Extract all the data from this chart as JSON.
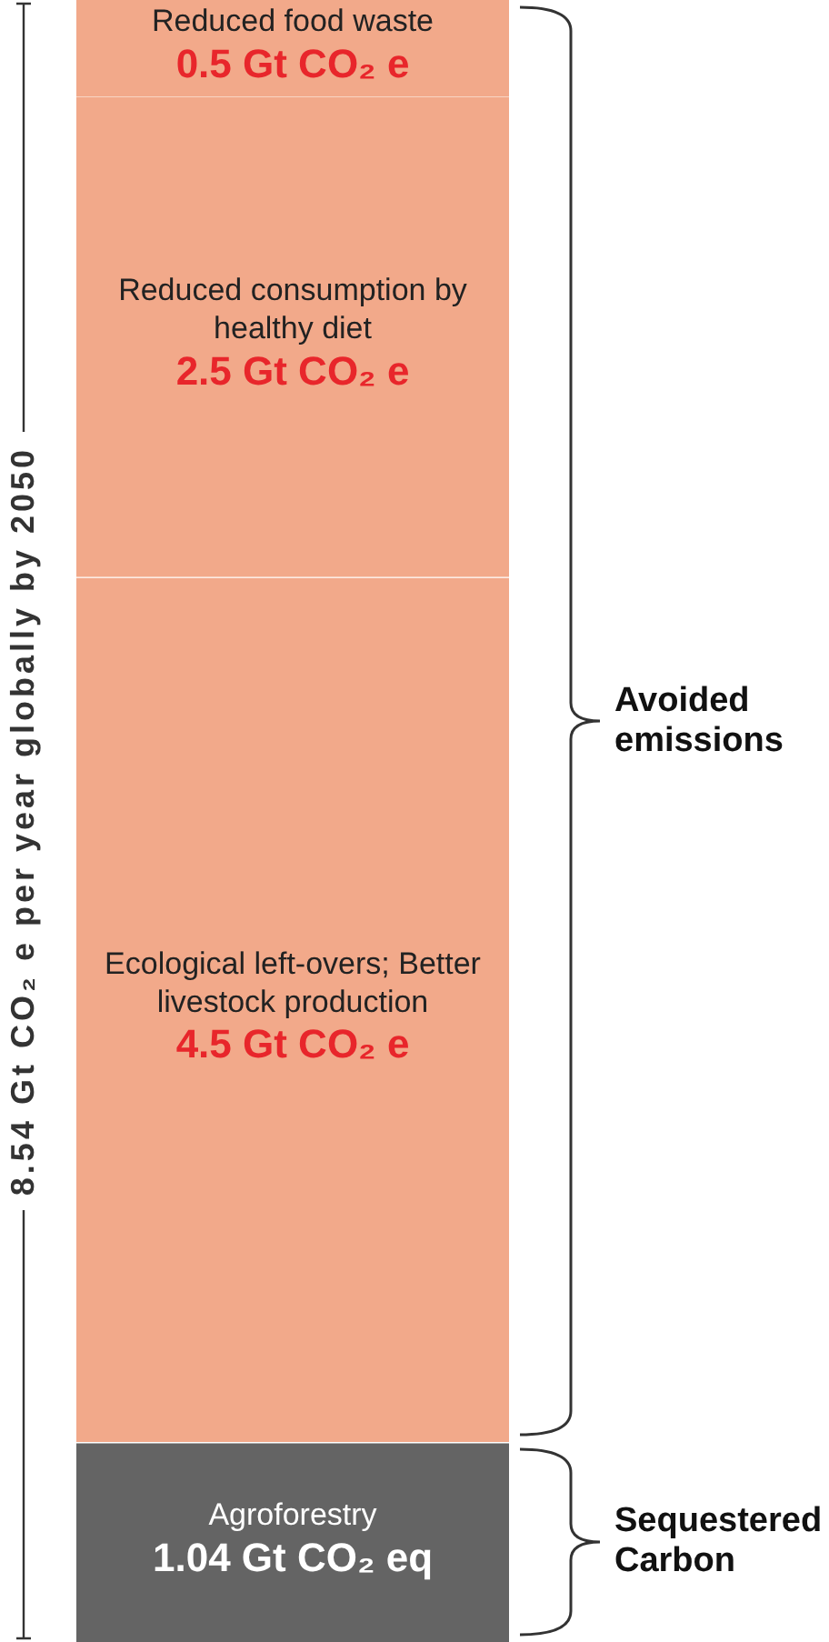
{
  "chart_data": {
    "type": "bar",
    "stacked": true,
    "legend": false,
    "categories": [
      null
    ],
    "series": [
      {
        "name": "Agroforestry",
        "color": "#646464",
        "values": [
          1.04
        ],
        "value_labels": [
          "1.04 Gt CO₂ eq"
        ]
      },
      {
        "name": "Ecological left-overs; Better livestock production",
        "color": "#f2a98a",
        "values": [
          4.5
        ],
        "value_labels": [
          "4.5 Gt CO₂ e"
        ]
      },
      {
        "name": "Reduced consumption by healthy diet",
        "color": "#f2a98a",
        "values": [
          2.5
        ],
        "value_labels": [
          "2.5 Gt CO₂ e"
        ]
      },
      {
        "name": "Reduced food waste",
        "color": "#f2a98a",
        "values": [
          0.5
        ],
        "value_labels": [
          "0.5 Gt CO₂ e"
        ]
      }
    ],
    "annotations": [
      "Avoided emissions",
      "Sequestered Carbon",
      "8.54 Gt CO₂ e per year globally by 2050"
    ]
  }
}
